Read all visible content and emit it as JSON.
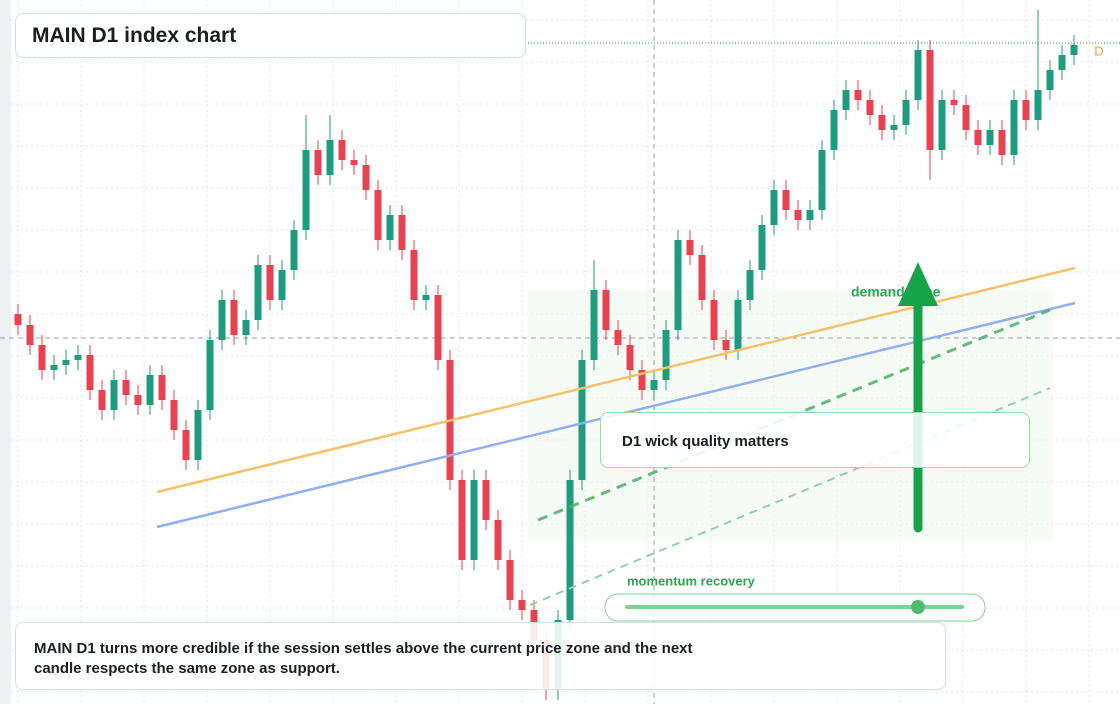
{
  "chart_data": {
    "type": "candlestick",
    "title": "MAIN D1 index chart",
    "annotations": [
      "D1 wick quality matters",
      "demand zone",
      "momentum recovery",
      "MAIN D1 turns more credible if the session settles above the current price zone and the next candle respects the same zone as support."
    ],
    "badge": "D",
    "ylim": [
      0,
      704
    ],
    "up_color": "#1f9b7f",
    "down_color": "#e8414f",
    "open": [
      390,
      379,
      359,
      334,
      339,
      344,
      349,
      314,
      294,
      324,
      309,
      299,
      329,
      304,
      274,
      244,
      294,
      364,
      404,
      369,
      384,
      439,
      404,
      434,
      474,
      554,
      529,
      564,
      544,
      539,
      514,
      464,
      489,
      454,
      404,
      409,
      344,
      224,
      144,
      224,
      184,
      144,
      104,
      94,
      64,
      14,
      84,
      224,
      344,
      414,
      374,
      359,
      334,
      314,
      324,
      374,
      464,
      449,
      404,
      364,
      354,
      404,
      434,
      479,
      514,
      494,
      484,
      494,
      554,
      594,
      614,
      604,
      589,
      574,
      579,
      604,
      654,
      554,
      604,
      599,
      574,
      559,
      574,
      549,
      604,
      584,
      614,
      634,
      649
    ],
    "high": [
      400,
      389,
      369,
      349,
      354,
      359,
      359,
      324,
      334,
      334,
      319,
      339,
      339,
      314,
      284,
      304,
      374,
      414,
      414,
      394,
      449,
      449,
      444,
      484,
      589,
      564,
      589,
      574,
      554,
      549,
      524,
      499,
      499,
      464,
      419,
      419,
      354,
      234,
      234,
      234,
      194,
      154,
      114,
      104,
      74,
      94,
      234,
      354,
      444,
      424,
      384,
      369,
      344,
      334,
      384,
      474,
      474,
      459,
      414,
      374,
      414,
      444,
      489,
      524,
      524,
      504,
      504,
      564,
      604,
      624,
      624,
      614,
      599,
      589,
      614,
      664,
      664,
      614,
      614,
      609,
      584,
      584,
      584,
      614,
      614,
      694,
      644,
      659,
      669
    ],
    "low": [
      369,
      349,
      324,
      324,
      329,
      334,
      304,
      284,
      284,
      299,
      289,
      289,
      294,
      264,
      234,
      234,
      284,
      354,
      359,
      359,
      374,
      394,
      394,
      424,
      464,
      519,
      519,
      534,
      529,
      504,
      454,
      454,
      444,
      394,
      394,
      334,
      214,
      134,
      134,
      174,
      134,
      94,
      84,
      54,
      4,
      4,
      74,
      214,
      334,
      364,
      349,
      324,
      304,
      304,
      314,
      364,
      439,
      394,
      354,
      344,
      344,
      394,
      424,
      469,
      484,
      474,
      474,
      484,
      544,
      584,
      594,
      579,
      564,
      564,
      569,
      594,
      524,
      544,
      589,
      564,
      549,
      549,
      539,
      539,
      574,
      574,
      604,
      624,
      639
    ],
    "close": [
      379,
      359,
      334,
      339,
      344,
      349,
      314,
      294,
      324,
      309,
      299,
      329,
      304,
      274,
      244,
      294,
      364,
      404,
      369,
      384,
      439,
      404,
      434,
      474,
      554,
      529,
      564,
      544,
      539,
      514,
      464,
      489,
      454,
      404,
      409,
      344,
      224,
      144,
      224,
      184,
      144,
      104,
      94,
      64,
      14,
      84,
      224,
      344,
      414,
      374,
      359,
      334,
      314,
      324,
      374,
      464,
      449,
      404,
      364,
      354,
      404,
      434,
      479,
      514,
      494,
      484,
      494,
      554,
      594,
      614,
      604,
      589,
      574,
      579,
      604,
      654,
      554,
      604,
      599,
      574,
      559,
      574,
      549,
      604,
      584,
      614,
      634,
      649,
      659
    ]
  }
}
